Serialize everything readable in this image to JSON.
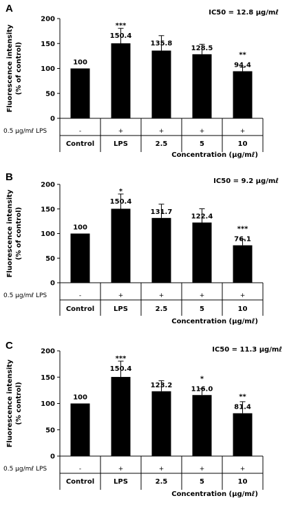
{
  "chart_data": [
    {
      "type": "bar",
      "panel": "A",
      "annotation": "IC50 = 12.8 μg/mℓ",
      "ylabel_line1": "Fluorescence intensity",
      "ylabel_line2": "(% of control)",
      "ylim": [
        0,
        200
      ],
      "yticks": [
        0,
        50,
        100,
        150,
        200
      ],
      "categories": [
        "Control",
        "LPS",
        "2.5",
        "5",
        "10"
      ],
      "lps_row_label": "0.5 μg/mℓ LPS",
      "lps_row": [
        "-",
        "+",
        "+",
        "+",
        "+"
      ],
      "xlabel": "Concentration (μg/mℓ)",
      "values": [
        100,
        150.4,
        135.8,
        128.5,
        94.4
      ],
      "value_labels": [
        "100",
        "150.4",
        "135.8",
        "128.5",
        "94.4"
      ],
      "errors": [
        0,
        30,
        30,
        20,
        8
      ],
      "significance": [
        "",
        "***",
        "",
        "",
        "**"
      ]
    },
    {
      "type": "bar",
      "panel": "B",
      "annotation": "IC50 = 9.2 μg/mℓ",
      "ylabel_line1": "Fluorescence intensity",
      "ylabel_line2": "(% of control)",
      "ylim": [
        0,
        200
      ],
      "yticks": [
        0,
        50,
        100,
        150,
        200
      ],
      "categories": [
        "Control",
        "LPS",
        "2.5",
        "5",
        "10"
      ],
      "lps_row_label": "0.5 μg/mℓ LPS",
      "lps_row": [
        "-",
        "+",
        "+",
        "+",
        "+"
      ],
      "xlabel": "Concentration (μg/mℓ)",
      "values": [
        100,
        150.4,
        131.7,
        122.4,
        76.1
      ],
      "value_labels": [
        "100",
        "150.4",
        "131.7",
        "122.4",
        "76.1"
      ],
      "errors": [
        0,
        30,
        28,
        28,
        12
      ],
      "significance": [
        "",
        "*",
        "",
        "",
        "***"
      ]
    },
    {
      "type": "bar",
      "panel": "C",
      "annotation": "IC50 = 11.3 μg/mℓ",
      "ylabel_line1": "Fluorescence intensity",
      "ylabel_line2": "(% control)",
      "ylim": [
        0,
        200
      ],
      "yticks": [
        0,
        50,
        100,
        150,
        200
      ],
      "categories": [
        "Control",
        "LPS",
        "2.5",
        "5",
        "10"
      ],
      "lps_row_label": "0.5 μg/mℓ LPS",
      "lps_row": [
        "-",
        "+",
        "+",
        "+",
        "+"
      ],
      "xlabel": "Concentration (μg/mℓ)",
      "values": [
        100,
        150.4,
        123.2,
        116.0,
        81.4
      ],
      "value_labels": [
        "100",
        "150.4",
        "123.2",
        "116.0",
        "81.4"
      ],
      "errors": [
        0,
        30,
        20,
        12,
        22
      ],
      "significance": [
        "",
        "***",
        "",
        "*",
        "**"
      ]
    }
  ]
}
